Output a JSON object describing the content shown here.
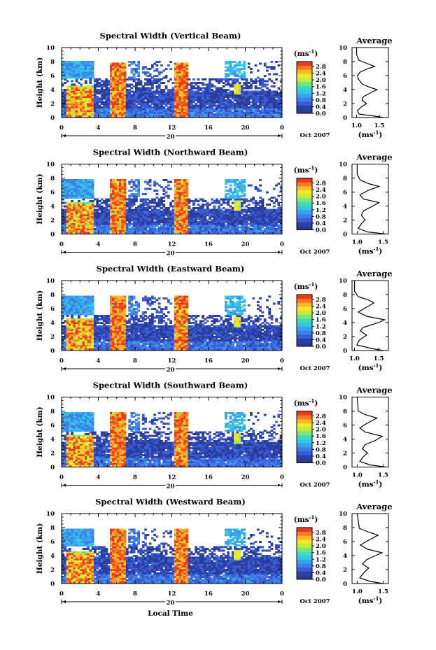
{
  "figure": {
    "xlabel": "Local Time",
    "colorbar_unit_base": "(ms",
    "colorbar_unit_exp": "-1",
    "colorbar_unit_close": ")",
    "avg_title": "Average",
    "avg_xlabel_base": "(ms",
    "avg_xlabel_exp": "-1",
    "avg_xlabel_close": ")",
    "ylabel": "Height (km)",
    "date_day": "20",
    "date_label": "Oct 2007"
  },
  "colorbar": {
    "ticks": [
      "2.8",
      "2.4",
      "2.0",
      "1.6",
      "1.2",
      "0.8",
      "0.4",
      "0.0"
    ],
    "colors": [
      "#283c90",
      "#2d3fa8",
      "#3a5cd4",
      "#3f7fe8",
      "#3aa3ee",
      "#35c6ea",
      "#3cdcb8",
      "#78e67a",
      "#c4ec3e",
      "#f3e82a",
      "#f8b828",
      "#f57a22",
      "#ec3b1c"
    ],
    "range": [
      0,
      3.0
    ]
  },
  "chart_data": [
    {
      "type": "heatmap",
      "title": "Spectral Width (Vertical Beam)",
      "xlim": [
        0,
        24
      ],
      "ylim": [
        0,
        10
      ],
      "xticks": [
        "0",
        "4",
        "8",
        "12",
        "16",
        "20",
        "0"
      ],
      "yticks": [
        "0",
        "2",
        "4",
        "6",
        "8",
        "10"
      ],
      "top_km": 8.0,
      "mid_top_km": 5.5,
      "dense_top_km": 3.8,
      "average_profile": {
        "xticks": [
          "1.0",
          "1.5"
        ],
        "xlim": [
          0.9,
          1.7
        ],
        "points": [
          [
            0.0,
            1.6
          ],
          [
            0.2,
            1.4
          ],
          [
            0.5,
            1.05
          ],
          [
            1.0,
            1.02
          ],
          [
            1.5,
            1.1
          ],
          [
            2.0,
            1.22
          ],
          [
            2.5,
            1.12
          ],
          [
            3.0,
            1.15
          ],
          [
            3.5,
            1.3
          ],
          [
            4.0,
            1.45
          ],
          [
            4.3,
            1.3
          ],
          [
            4.8,
            1.12
          ],
          [
            5.5,
            1.04
          ],
          [
            6.0,
            1.02
          ],
          [
            6.5,
            1.08
          ],
          [
            7.0,
            1.25
          ],
          [
            7.3,
            1.4
          ],
          [
            7.8,
            1.2
          ],
          [
            8.2,
            1.05
          ],
          [
            9.0,
            1.0
          ],
          [
            10.0,
            1.0
          ]
        ]
      }
    },
    {
      "type": "heatmap",
      "title": "Spectral Width (Northward Beam)",
      "xlim": [
        0,
        24
      ],
      "ylim": [
        0,
        10
      ],
      "xticks": [
        "0",
        "4",
        "8",
        "12",
        "16",
        "20",
        "0"
      ],
      "yticks": [
        "0",
        "2",
        "4",
        "6",
        "8",
        "10"
      ],
      "top_km": 7.7,
      "mid_top_km": 5.0,
      "dense_top_km": 3.6,
      "average_profile": {
        "xticks": [
          "1.0",
          "1.5"
        ],
        "xlim": [
          0.9,
          1.6
        ],
        "points": [
          [
            0.0,
            1.55
          ],
          [
            0.3,
            1.2
          ],
          [
            0.8,
            1.02
          ],
          [
            1.5,
            1.08
          ],
          [
            2.0,
            1.15
          ],
          [
            2.7,
            1.08
          ],
          [
            3.3,
            1.12
          ],
          [
            4.0,
            1.3
          ],
          [
            4.5,
            1.42
          ],
          [
            5.0,
            1.12
          ],
          [
            5.6,
            1.05
          ],
          [
            6.2,
            1.2
          ],
          [
            6.8,
            1.42
          ],
          [
            7.2,
            1.22
          ],
          [
            7.7,
            1.06
          ],
          [
            8.5,
            1.0
          ],
          [
            10.0,
            1.0
          ]
        ]
      }
    },
    {
      "type": "heatmap",
      "title": "Spectral Width (Eastward Beam)",
      "xlim": [
        0,
        24
      ],
      "ylim": [
        0,
        10
      ],
      "xticks": [
        "0",
        "4",
        "8",
        "12",
        "16",
        "20",
        "0"
      ],
      "yticks": [
        "0",
        "2",
        "4",
        "6",
        "8",
        "10"
      ],
      "top_km": 7.7,
      "mid_top_km": 5.0,
      "dense_top_km": 3.6,
      "average_profile": {
        "xticks": [
          "1.0",
          "1.5"
        ],
        "xlim": [
          0.95,
          1.7
        ],
        "points": [
          [
            0.0,
            1.6
          ],
          [
            0.3,
            1.35
          ],
          [
            0.8,
            1.05
          ],
          [
            1.5,
            1.1
          ],
          [
            2.2,
            1.25
          ],
          [
            2.8,
            1.12
          ],
          [
            3.3,
            1.18
          ],
          [
            4.0,
            1.5
          ],
          [
            4.4,
            1.62
          ],
          [
            4.9,
            1.25
          ],
          [
            5.5,
            1.08
          ],
          [
            6.2,
            1.25
          ],
          [
            6.8,
            1.4
          ],
          [
            7.2,
            1.3
          ],
          [
            7.7,
            1.08
          ],
          [
            8.5,
            1.0
          ],
          [
            10.0,
            1.0
          ]
        ]
      }
    },
    {
      "type": "heatmap",
      "title": "Spectral Width (Southward Beam)",
      "xlim": [
        0,
        24
      ],
      "ylim": [
        0,
        10
      ],
      "xticks": [
        "0",
        "4",
        "8",
        "12",
        "16",
        "20",
        "0"
      ],
      "yticks": [
        "0",
        "2",
        "4",
        "6",
        "8",
        "10"
      ],
      "top_km": 7.7,
      "mid_top_km": 5.0,
      "dense_top_km": 3.6,
      "average_profile": {
        "xticks": [
          "1.0",
          "1.5"
        ],
        "xlim": [
          0.9,
          1.6
        ],
        "points": [
          [
            0.0,
            1.55
          ],
          [
            0.3,
            1.25
          ],
          [
            0.8,
            1.05
          ],
          [
            1.5,
            1.12
          ],
          [
            2.0,
            1.2
          ],
          [
            2.6,
            1.1
          ],
          [
            3.2,
            1.15
          ],
          [
            3.8,
            1.35
          ],
          [
            4.4,
            1.48
          ],
          [
            5.0,
            1.15
          ],
          [
            5.6,
            1.05
          ],
          [
            6.3,
            1.2
          ],
          [
            7.0,
            1.38
          ],
          [
            7.5,
            1.15
          ],
          [
            8.0,
            1.02
          ],
          [
            10.0,
            1.0
          ]
        ]
      }
    },
    {
      "type": "heatmap",
      "title": "Spectral Width (Westward Beam)",
      "xlim": [
        0,
        24
      ],
      "ylim": [
        0,
        10
      ],
      "xticks": [
        "0",
        "4",
        "8",
        "12",
        "16",
        "20",
        "0"
      ],
      "yticks": [
        "0",
        "2",
        "4",
        "6",
        "8",
        "10"
      ],
      "top_km": 7.8,
      "mid_top_km": 5.2,
      "dense_top_km": 3.7,
      "average_profile": {
        "xticks": [
          "1.0",
          "1.5"
        ],
        "xlim": [
          0.9,
          1.6
        ],
        "points": [
          [
            0.0,
            1.5
          ],
          [
            0.3,
            1.25
          ],
          [
            0.8,
            1.05
          ],
          [
            1.5,
            1.12
          ],
          [
            2.2,
            1.22
          ],
          [
            2.8,
            1.1
          ],
          [
            3.4,
            1.18
          ],
          [
            4.0,
            1.35
          ],
          [
            4.4,
            1.48
          ],
          [
            4.9,
            1.2
          ],
          [
            5.5,
            1.06
          ],
          [
            6.2,
            1.22
          ],
          [
            6.9,
            1.4
          ],
          [
            7.4,
            1.2
          ],
          [
            7.9,
            1.04
          ],
          [
            10.0,
            1.0
          ]
        ]
      }
    }
  ]
}
